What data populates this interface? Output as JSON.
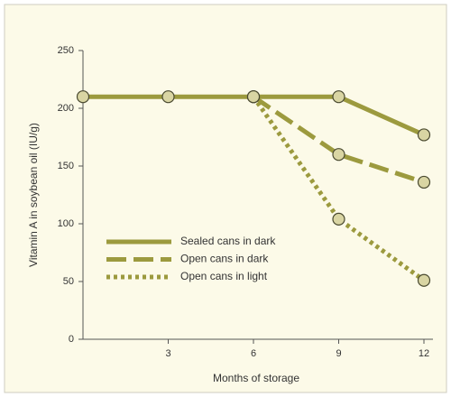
{
  "chart_data": {
    "type": "line",
    "x_label": "Months of storage",
    "y_label": "Vitamin A in soybean oil (IU/g)",
    "x": [
      0,
      3,
      6,
      9,
      12
    ],
    "xlim": [
      0,
      12
    ],
    "xticks": [
      3,
      6,
      9,
      12
    ],
    "ylim": [
      0,
      250
    ],
    "yticks": [
      0,
      50,
      100,
      150,
      200,
      250
    ],
    "legend": "center-left",
    "series": [
      {
        "name": "Sealed cans in dark",
        "color": "#9c9a3e",
        "dash": "solid",
        "values": [
          210,
          210,
          210,
          210,
          177
        ]
      },
      {
        "name": "Open cans in dark",
        "color": "#9c9a3e",
        "dash": "dashed",
        "values": [
          null,
          null,
          210,
          160,
          136
        ]
      },
      {
        "name": "Open cans in light",
        "color": "#9c9a3e",
        "dash": "dotted",
        "values": [
          null,
          null,
          210,
          104,
          51
        ]
      }
    ]
  }
}
